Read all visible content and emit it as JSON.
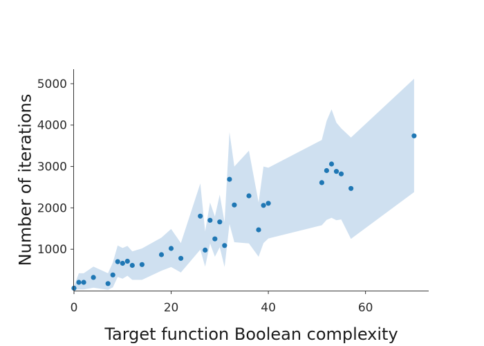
{
  "chart_data": {
    "type": "scatter",
    "title": "",
    "xlabel": "Target function Boolean complexity",
    "ylabel": "Number of iterations",
    "xlim": [
      0,
      73
    ],
    "ylim": [
      0,
      5350
    ],
    "x_ticks": [
      0,
      20,
      40,
      60
    ],
    "y_ticks": [
      1000,
      2000,
      3000,
      4000,
      5000
    ],
    "grid": false,
    "legend": "none",
    "colors": {
      "points": "#1f77b4",
      "band": "#cfe0f0"
    },
    "series": [
      {
        "points": [
          {
            "x": 0,
            "y": 60
          },
          {
            "x": 1,
            "y": 200
          },
          {
            "x": 2,
            "y": 200
          },
          {
            "x": 4,
            "y": 320
          },
          {
            "x": 7,
            "y": 170
          },
          {
            "x": 8,
            "y": 380
          },
          {
            "x": 9,
            "y": 700
          },
          {
            "x": 10,
            "y": 660
          },
          {
            "x": 11,
            "y": 710
          },
          {
            "x": 12,
            "y": 610
          },
          {
            "x": 14,
            "y": 630
          },
          {
            "x": 18,
            "y": 870
          },
          {
            "x": 20,
            "y": 1020
          },
          {
            "x": 22,
            "y": 780
          },
          {
            "x": 26,
            "y": 1800
          },
          {
            "x": 27,
            "y": 980
          },
          {
            "x": 28,
            "y": 1700
          },
          {
            "x": 29,
            "y": 1250
          },
          {
            "x": 30,
            "y": 1660
          },
          {
            "x": 31,
            "y": 1090
          },
          {
            "x": 32,
            "y": 2690
          },
          {
            "x": 33,
            "y": 2070
          },
          {
            "x": 36,
            "y": 2290
          },
          {
            "x": 38,
            "y": 1470
          },
          {
            "x": 39,
            "y": 2060
          },
          {
            "x": 40,
            "y": 2110
          },
          {
            "x": 51,
            "y": 2610
          },
          {
            "x": 52,
            "y": 2900
          },
          {
            "x": 53,
            "y": 3060
          },
          {
            "x": 54,
            "y": 2880
          },
          {
            "x": 55,
            "y": 2820
          },
          {
            "x": 57,
            "y": 2470
          },
          {
            "x": 70,
            "y": 3740
          }
        ]
      }
    ],
    "band": {
      "x": [
        0,
        1,
        2,
        4,
        7,
        8,
        9,
        10,
        11,
        12,
        14,
        18,
        20,
        22,
        26,
        27,
        28,
        29,
        30,
        31,
        32,
        33,
        36,
        38,
        39,
        40,
        51,
        52,
        53,
        54,
        55,
        57,
        70
      ],
      "upper": [
        100,
        420,
        420,
        580,
        420,
        680,
        1090,
        1030,
        1080,
        950,
        1020,
        1280,
        1490,
        1150,
        2590,
        1430,
        2130,
        1790,
        2320,
        1650,
        3830,
        3000,
        3380,
        2130,
        3000,
        2970,
        3640,
        4100,
        4380,
        4060,
        3920,
        3700,
        5120
      ],
      "lower": [
        20,
        30,
        30,
        70,
        20,
        80,
        330,
        290,
        360,
        260,
        260,
        480,
        570,
        440,
        990,
        580,
        1140,
        820,
        1050,
        570,
        1610,
        1170,
        1140,
        820,
        1150,
        1260,
        1580,
        1710,
        1760,
        1700,
        1720,
        1250,
        2380
      ]
    }
  }
}
